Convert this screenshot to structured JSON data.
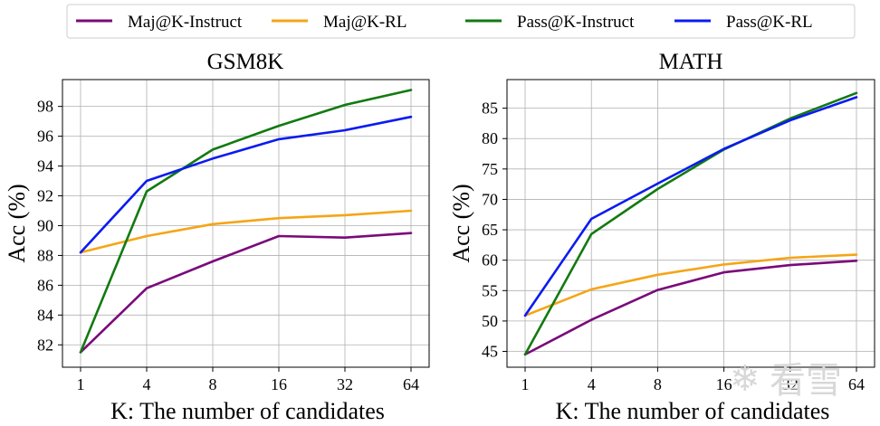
{
  "legend": [
    {
      "name": "Maj@K-Instruct",
      "color": "#7a0a7a"
    },
    {
      "name": "Maj@K-RL",
      "color": "#f5a516"
    },
    {
      "name": "Pass@K-Instruct",
      "color": "#127a12"
    },
    {
      "name": "Pass@K-RL",
      "color": "#0b1bf0"
    }
  ],
  "watermark": {
    "text": "看雪",
    "icon": "snowflake-icon"
  },
  "chart_data": [
    {
      "type": "line",
      "title": "GSM8K",
      "xlabel": "K: The number of candidates",
      "ylabel": "Acc (%)",
      "x": [
        "1",
        "4",
        "8",
        "16",
        "32",
        "64"
      ],
      "ylim": [
        80.5,
        99.8
      ],
      "yticks": [
        82,
        84,
        86,
        88,
        90,
        92,
        94,
        96,
        98
      ],
      "grid": true,
      "series": [
        {
          "name": "Maj@K-Instruct",
          "color": "#7a0a7a",
          "values": [
            81.5,
            85.8,
            87.6,
            89.3,
            89.2,
            89.5
          ]
        },
        {
          "name": "Maj@K-RL",
          "color": "#f5a516",
          "values": [
            88.2,
            89.3,
            90.1,
            90.5,
            90.7,
            91.0
          ]
        },
        {
          "name": "Pass@K-Instruct",
          "color": "#127a12",
          "values": [
            81.5,
            92.3,
            95.1,
            96.7,
            98.1,
            99.1
          ]
        },
        {
          "name": "Pass@K-RL",
          "color": "#0b1bf0",
          "values": [
            88.2,
            93.0,
            94.5,
            95.8,
            96.4,
            97.3
          ]
        }
      ]
    },
    {
      "type": "line",
      "title": "MATH",
      "xlabel": "K: The number of candidates",
      "ylabel": "Acc (%)",
      "x": [
        "1",
        "4",
        "8",
        "16",
        "32",
        "64"
      ],
      "ylim": [
        42.4,
        89.7
      ],
      "yticks": [
        45,
        50,
        55,
        60,
        65,
        70,
        75,
        80,
        85
      ],
      "grid": true,
      "series": [
        {
          "name": "Maj@K-Instruct",
          "color": "#7a0a7a",
          "values": [
            44.5,
            50.2,
            55.1,
            58.0,
            59.2,
            59.9
          ]
        },
        {
          "name": "Maj@K-RL",
          "color": "#f5a516",
          "values": [
            50.9,
            55.2,
            57.6,
            59.3,
            60.4,
            60.9
          ]
        },
        {
          "name": "Pass@K-Instruct",
          "color": "#127a12",
          "values": [
            44.5,
            64.3,
            71.7,
            78.2,
            83.3,
            87.5
          ]
        },
        {
          "name": "Pass@K-RL",
          "color": "#0b1bf0",
          "values": [
            50.9,
            66.8,
            72.6,
            78.3,
            83.0,
            86.8
          ]
        }
      ]
    }
  ]
}
